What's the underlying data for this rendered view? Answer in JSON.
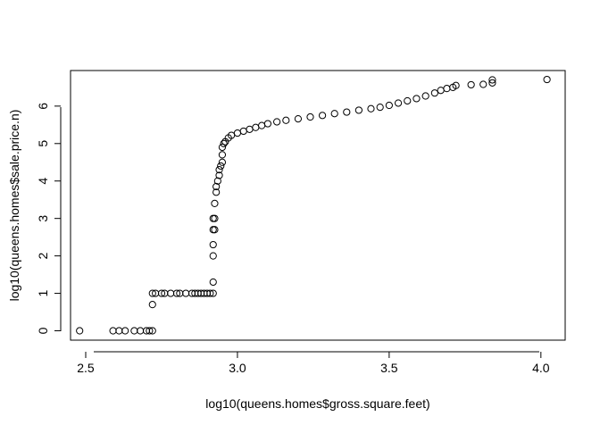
{
  "chart_data": {
    "type": "scatter",
    "xlabel": "log10(queens.homes$gross.square.feet)",
    "ylabel": "log10(queens.homes$sale.price.n)",
    "xlim": [
      2.45,
      4.08
    ],
    "ylim": [
      -0.25,
      6.95
    ],
    "x_ticks": [
      2.5,
      3.0,
      3.5,
      4.0
    ],
    "x_tick_labels": [
      "2.5",
      "3.0",
      "3.5",
      "4.0"
    ],
    "y_ticks": [
      0,
      1,
      2,
      3,
      4,
      5,
      6
    ],
    "y_tick_labels": [
      "0",
      "1",
      "2",
      "3",
      "4",
      "5",
      "6"
    ],
    "grid": false,
    "legend": "none",
    "marker": "open-circle",
    "marker_color": "#000000",
    "points": [
      [
        2.48,
        0
      ],
      [
        2.59,
        0
      ],
      [
        2.61,
        0
      ],
      [
        2.63,
        0
      ],
      [
        2.66,
        0
      ],
      [
        2.68,
        0
      ],
      [
        2.7,
        0
      ],
      [
        2.71,
        0
      ],
      [
        2.72,
        0
      ],
      [
        2.72,
        0.7
      ],
      [
        2.72,
        1
      ],
      [
        2.73,
        1
      ],
      [
        2.75,
        1
      ],
      [
        2.76,
        1
      ],
      [
        2.78,
        1
      ],
      [
        2.8,
        1
      ],
      [
        2.81,
        1
      ],
      [
        2.83,
        1
      ],
      [
        2.85,
        1
      ],
      [
        2.86,
        1
      ],
      [
        2.87,
        1
      ],
      [
        2.88,
        1
      ],
      [
        2.89,
        1
      ],
      [
        2.9,
        1
      ],
      [
        2.91,
        1
      ],
      [
        2.92,
        1
      ],
      [
        2.92,
        1.3
      ],
      [
        2.92,
        2.0
      ],
      [
        2.92,
        2.3
      ],
      [
        2.92,
        2.7
      ],
      [
        2.92,
        3.0
      ],
      [
        2.925,
        2.7
      ],
      [
        2.925,
        3.0
      ],
      [
        2.925,
        3.4
      ],
      [
        2.93,
        3.7
      ],
      [
        2.93,
        3.85
      ],
      [
        2.935,
        4.0
      ],
      [
        2.94,
        4.15
      ],
      [
        2.94,
        4.3
      ],
      [
        2.945,
        4.4
      ],
      [
        2.95,
        4.5
      ],
      [
        2.95,
        4.7
      ],
      [
        2.95,
        4.9
      ],
      [
        2.955,
        5.0
      ],
      [
        2.96,
        5.05
      ],
      [
        2.97,
        5.15
      ],
      [
        2.98,
        5.22
      ],
      [
        3.0,
        5.28
      ],
      [
        3.02,
        5.33
      ],
      [
        3.04,
        5.38
      ],
      [
        3.06,
        5.43
      ],
      [
        3.08,
        5.48
      ],
      [
        3.1,
        5.53
      ],
      [
        3.13,
        5.58
      ],
      [
        3.16,
        5.62
      ],
      [
        3.2,
        5.66
      ],
      [
        3.24,
        5.71
      ],
      [
        3.28,
        5.75
      ],
      [
        3.32,
        5.8
      ],
      [
        3.36,
        5.84
      ],
      [
        3.4,
        5.89
      ],
      [
        3.44,
        5.93
      ],
      [
        3.47,
        5.97
      ],
      [
        3.5,
        6.02
      ],
      [
        3.53,
        6.08
      ],
      [
        3.56,
        6.14
      ],
      [
        3.59,
        6.2
      ],
      [
        3.62,
        6.27
      ],
      [
        3.65,
        6.35
      ],
      [
        3.67,
        6.42
      ],
      [
        3.69,
        6.47
      ],
      [
        3.71,
        6.5
      ],
      [
        3.72,
        6.55
      ],
      [
        3.77,
        6.57
      ],
      [
        3.81,
        6.58
      ],
      [
        3.84,
        6.62
      ],
      [
        3.84,
        6.7
      ],
      [
        4.02,
        6.71
      ]
    ]
  }
}
